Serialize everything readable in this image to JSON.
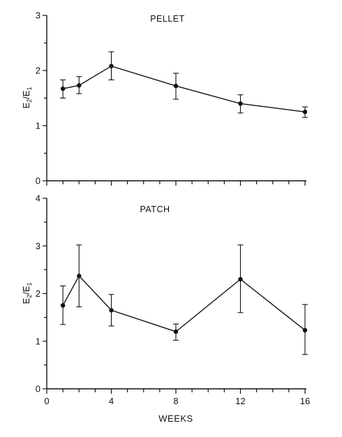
{
  "chart_data": [
    {
      "type": "line",
      "title": "PELLET",
      "ylabel": {
        "base": "E",
        "num_sub": "2",
        "sep": "/",
        "den_sub": "1"
      },
      "xlabel": "",
      "xlim": [
        0,
        16
      ],
      "ylim": [
        0,
        3
      ],
      "yticks": [
        0,
        1,
        2,
        3
      ],
      "x": [
        1,
        2,
        4,
        8,
        12,
        16
      ],
      "values": [
        1.67,
        1.73,
        2.08,
        1.72,
        1.4,
        1.25
      ],
      "err_low": [
        1.5,
        1.58,
        1.83,
        1.48,
        1.23,
        1.15
      ],
      "err_high": [
        1.83,
        1.89,
        2.34,
        1.95,
        1.56,
        1.34
      ]
    },
    {
      "type": "line",
      "title": "PATCH",
      "ylabel": {
        "base": "E",
        "num_sub": "2",
        "sep": "/",
        "den_sub": "1"
      },
      "xlabel": "WEEKS",
      "xlim": [
        0,
        16
      ],
      "ylim": [
        0,
        4
      ],
      "yticks": [
        0,
        1,
        2,
        3,
        4
      ],
      "xticks": [
        0,
        4,
        8,
        12,
        16
      ],
      "x": [
        1,
        2,
        4,
        8,
        12,
        16
      ],
      "values": [
        1.75,
        2.37,
        1.65,
        1.2,
        2.3,
        1.23
      ],
      "err_low": [
        1.35,
        1.72,
        1.32,
        1.02,
        1.6,
        0.72
      ],
      "err_high": [
        2.16,
        3.02,
        1.98,
        1.36,
        3.02,
        1.77
      ]
    }
  ]
}
